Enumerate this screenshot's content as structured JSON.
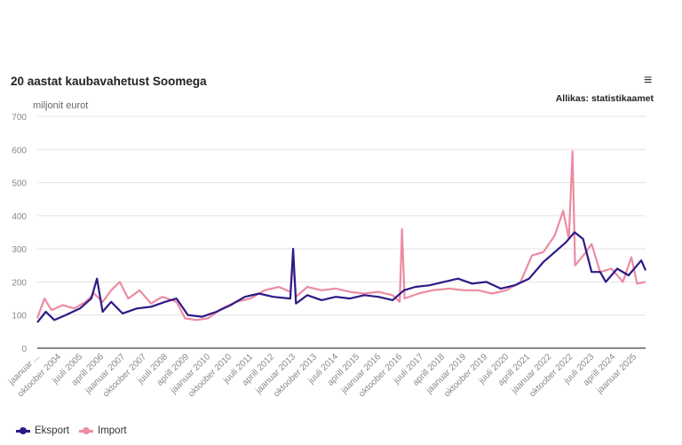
{
  "chart_data": {
    "type": "line",
    "title": "20 aastat kaubavahetust Soomega",
    "source": "Allikas: statistikaamet",
    "ylabel": "miljonit eurot",
    "ylim": [
      0,
      700
    ],
    "yticks": [
      0,
      100,
      200,
      300,
      400,
      500,
      600,
      700
    ],
    "xlim": [
      2004,
      2025.4
    ],
    "xtick_labels": [
      "jaanuar ...",
      "oktoober 2004",
      "juuli 2005",
      "aprill 2006",
      "jaanuar 2007",
      "oktoober 2007",
      "juuli 2008",
      "aprill 2009",
      "jaanuar 2010",
      "oktoober 2010",
      "juuli 2011",
      "aprill 2012",
      "jaanuar 2013",
      "oktoober 2013",
      "juuli 2014",
      "aprill 2015",
      "jaanuar 2016",
      "oktoober 2016",
      "juuli 2017",
      "aprill 2018",
      "jaanuar 2019",
      "oktoober 2019",
      "juuli 2020",
      "aprill 2021",
      "jaanuar 2022",
      "oktoober 2022",
      "juuli 2023",
      "aprill 2024",
      "jaanuar 2025"
    ],
    "legend_position": "bottom-left",
    "grid": true,
    "series": [
      {
        "name": "Eksport",
        "color": "#2e1a87",
        "x": [
          2004.0,
          2004.3,
          2004.6,
          2005.0,
          2005.5,
          2005.9,
          2006.1,
          2006.3,
          2006.6,
          2007.0,
          2007.5,
          2008.0,
          2008.5,
          2008.9,
          2009.3,
          2009.8,
          2010.3,
          2010.8,
          2011.3,
          2011.8,
          2012.3,
          2012.9,
          2013.0,
          2013.1,
          2013.5,
          2014.0,
          2014.5,
          2015.0,
          2015.5,
          2016.0,
          2016.5,
          2016.9,
          2017.3,
          2017.8,
          2018.3,
          2018.8,
          2019.3,
          2019.8,
          2020.3,
          2020.8,
          2021.3,
          2021.8,
          2022.2,
          2022.6,
          2022.9,
          2023.2,
          2023.5,
          2023.8,
          2024.0,
          2024.4,
          2024.8,
          2025.1,
          2025.25,
          2025.4
        ],
        "values": [
          78,
          110,
          85,
          100,
          120,
          150,
          210,
          110,
          140,
          105,
          120,
          125,
          140,
          150,
          100,
          95,
          110,
          130,
          155,
          165,
          155,
          150,
          300,
          135,
          160,
          145,
          155,
          150,
          160,
          155,
          145,
          175,
          185,
          190,
          200,
          210,
          195,
          200,
          180,
          190,
          210,
          260,
          290,
          320,
          350,
          330,
          230,
          230,
          200,
          240,
          220,
          250,
          265,
          235
        ]
      },
      {
        "name": "Import",
        "color": "#ec8ca3",
        "x": [
          2004.0,
          2004.25,
          2004.5,
          2004.9,
          2005.3,
          2005.7,
          2006.0,
          2006.3,
          2006.6,
          2006.9,
          2007.2,
          2007.6,
          2008.0,
          2008.4,
          2008.9,
          2009.2,
          2009.6,
          2010.0,
          2010.5,
          2011.0,
          2011.5,
          2012.0,
          2012.5,
          2012.9,
          2013.0,
          2013.1,
          2013.5,
          2014.0,
          2014.5,
          2015.0,
          2015.5,
          2016.0,
          2016.5,
          2016.75,
          2016.83,
          2016.92,
          2017.4,
          2017.9,
          2018.5,
          2019.0,
          2019.5,
          2020.0,
          2020.5,
          2021.0,
          2021.4,
          2021.8,
          2022.2,
          2022.5,
          2022.7,
          2022.83,
          2022.92,
          2023.3,
          2023.5,
          2023.8,
          2024.2,
          2024.6,
          2024.9,
          2025.1,
          2025.4
        ],
        "values": [
          90,
          150,
          115,
          130,
          120,
          140,
          165,
          140,
          175,
          200,
          150,
          175,
          135,
          155,
          140,
          90,
          85,
          90,
          120,
          140,
          150,
          175,
          185,
          170,
          260,
          155,
          185,
          175,
          180,
          170,
          165,
          170,
          160,
          140,
          360,
          150,
          165,
          175,
          180,
          175,
          175,
          165,
          175,
          200,
          280,
          290,
          340,
          415,
          330,
          595,
          250,
          290,
          315,
          230,
          240,
          200,
          275,
          195,
          200
        ]
      }
    ]
  },
  "ui": {
    "menu_icon": "hamburger-menu-icon"
  }
}
